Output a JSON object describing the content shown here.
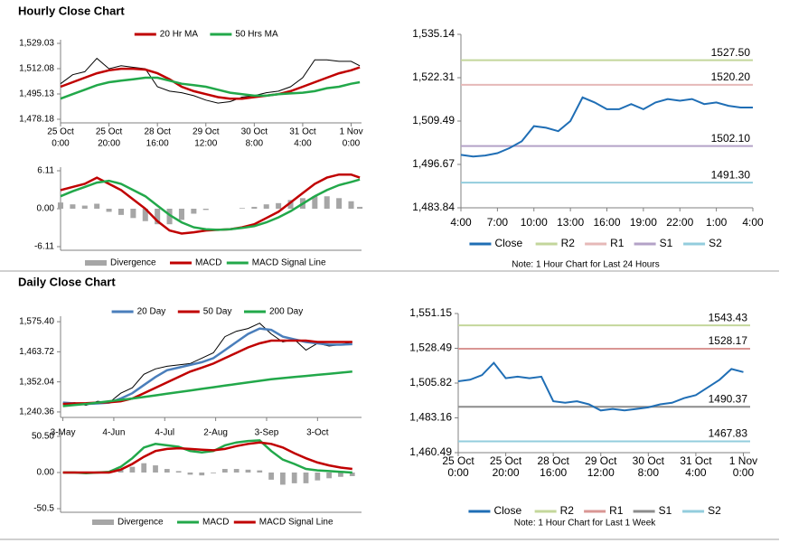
{
  "sections": [
    {
      "title": "Hourly Close Chart"
    },
    {
      "title": "Daily Close Chart"
    }
  ],
  "chart_data": [
    {
      "type": "line",
      "legend": "top",
      "x": [
        0,
        7,
        14,
        21,
        28,
        35,
        42,
        49,
        56,
        63,
        70,
        77,
        84,
        91,
        98,
        105,
        112,
        119,
        126,
        133,
        140,
        147,
        154,
        161,
        168,
        173
      ],
      "xlim": [
        0,
        174
      ],
      "xticks": [
        {
          "value": 0,
          "label": [
            "25 Oct",
            "0:00"
          ]
        },
        {
          "value": 28,
          "label": [
            "25 Oct",
            "20:00"
          ]
        },
        {
          "value": 56,
          "label": [
            "28 Oct",
            "16:00"
          ]
        },
        {
          "value": 84,
          "label": [
            "29 Oct",
            "12:00"
          ]
        },
        {
          "value": 112,
          "label": [
            "30 Oct",
            "8:00"
          ]
        },
        {
          "value": 140,
          "label": [
            "31 Oct",
            "4:00"
          ]
        },
        {
          "value": 168,
          "label": [
            "1 Nov",
            "0:00"
          ]
        }
      ],
      "ylim": [
        1475.76,
        1531.45
      ],
      "yticks": [
        {
          "value": 1478.18,
          "label": "1,478.18"
        },
        {
          "value": 1495.13,
          "label": "1,495.13"
        },
        {
          "value": 1512.08,
          "label": "1,512.08"
        },
        {
          "value": 1529.03,
          "label": "1,529.03"
        }
      ],
      "series": [
        {
          "color": "#000000",
          "values": [
            1502,
            1508,
            1510,
            1519,
            1512,
            1514,
            1513,
            1512,
            1500,
            1497,
            1496,
            1494,
            1491,
            1489,
            1490,
            1493,
            1494,
            1496,
            1497,
            1500,
            1506,
            1518,
            1518,
            1517,
            1517,
            1514
          ]
        },
        {
          "name": "20 Hr MA",
          "color": "#c00000",
          "values": [
            1500,
            1503,
            1506,
            1509,
            1511,
            1512,
            1512,
            1511.5,
            1509,
            1505,
            1500,
            1497,
            1495,
            1493,
            1492,
            1492,
            1493,
            1494,
            1495,
            1497,
            1500,
            1503,
            1506,
            1509,
            1511,
            1513
          ]
        },
        {
          "name": "50 Hrs MA",
          "color": "#22a84a",
          "values": [
            1492,
            1495,
            1498,
            1501,
            1503,
            1504,
            1505,
            1506,
            1506,
            1504,
            1502,
            1501,
            1500,
            1498,
            1496,
            1495,
            1494,
            1494,
            1495,
            1495.5,
            1496,
            1497,
            1499,
            1500,
            1502,
            1503
          ]
        }
      ]
    },
    {
      "type": "macd",
      "legend": "bottom",
      "x": [
        0,
        7,
        14,
        21,
        28,
        35,
        42,
        49,
        56,
        63,
        70,
        77,
        84,
        91,
        98,
        105,
        112,
        119,
        126,
        133,
        140,
        147,
        154,
        161,
        168,
        173
      ],
      "xlim": [
        0,
        174
      ],
      "ylim": [
        -6.69,
        6.69
      ],
      "yticks": [
        -6.11,
        {
          "value": 0,
          "label": "0.00"
        },
        6.11
      ],
      "series": [
        {
          "name": "Divergence",
          "style": "bar",
          "color": "#a6a6a6",
          "values": [
            1,
            0.7,
            0.5,
            0.8,
            -0.5,
            -1,
            -1.5,
            -2,
            -2.5,
            -2.5,
            -1.8,
            -0.8,
            -0.2,
            0,
            0,
            0.1,
            0.3,
            0.7,
            0.9,
            1.4,
            1.7,
            2,
            2,
            1.7,
            1.2,
            0.3
          ]
        },
        {
          "name": "MACD",
          "color": "#c00000",
          "values": [
            3,
            3.5,
            4,
            5,
            4,
            3,
            1.5,
            0,
            -2,
            -3.5,
            -4,
            -3.8,
            -3.5,
            -3.4,
            -3.3,
            -3,
            -2.5,
            -1.5,
            -0.5,
            1,
            2.5,
            4,
            5,
            5.5,
            5.5,
            5
          ]
        },
        {
          "name": "MACD Signal Line",
          "color": "#22a84a",
          "values": [
            2,
            2.8,
            3.5,
            4.2,
            4.5,
            4,
            3,
            2,
            0.5,
            -1,
            -2.2,
            -3,
            -3.3,
            -3.4,
            -3.3,
            -3.1,
            -2.8,
            -2.2,
            -1.4,
            -0.4,
            0.8,
            2,
            3,
            3.8,
            4.3,
            4.7
          ]
        }
      ]
    },
    {
      "type": "levels",
      "legend": "bottom",
      "note": "Note: 1 Hour Chart for Last 24 Hours",
      "x": [
        0,
        1,
        2,
        3,
        4,
        5,
        6,
        7,
        8,
        9,
        10,
        11,
        12,
        13,
        14,
        15,
        16,
        17,
        18,
        19,
        20,
        21,
        22,
        23,
        24
      ],
      "xlim": [
        0,
        24
      ],
      "xticks": [
        {
          "value": 0,
          "label": "4:00"
        },
        {
          "value": 3,
          "label": "7:00"
        },
        {
          "value": 6,
          "label": "10:00"
        },
        {
          "value": 9,
          "label": "13:00"
        },
        {
          "value": 12,
          "label": "16:00"
        },
        {
          "value": 15,
          "label": "19:00"
        },
        {
          "value": 18,
          "label": "22:00"
        },
        {
          "value": 21,
          "label": "1:00"
        },
        {
          "value": 24,
          "label": "4:00"
        }
      ],
      "ylim": [
        1483.84,
        1535.14
      ],
      "yticks": [
        {
          "value": 1483.84,
          "label": "1,483.84"
        },
        {
          "value": 1496.67,
          "label": "1,496.67"
        },
        {
          "value": 1509.49,
          "label": "1,509.49"
        },
        {
          "value": 1522.31,
          "label": "1,522.31"
        },
        {
          "value": 1535.14,
          "label": "1,535.14"
        }
      ],
      "series": [
        {
          "name": "Close",
          "color": "#1f6eb5",
          "values": [
            1499.5,
            1499,
            1499.3,
            1500,
            1501.5,
            1503.5,
            1508,
            1507.5,
            1506.5,
            1509.5,
            1516.5,
            1515,
            1513,
            1513,
            1514.5,
            1513,
            1515,
            1516,
            1515.5,
            1516,
            1514.5,
            1515,
            1514,
            1513.5,
            1513.5
          ]
        }
      ],
      "levels": [
        {
          "name": "R2",
          "value": 1527.5,
          "label": "1527.50",
          "color": "#c3d69b"
        },
        {
          "name": "R1",
          "value": 1520.2,
          "label": "1520.20",
          "color": "#e6b9b8"
        },
        {
          "name": "S1",
          "value": 1502.1,
          "label": "1502.10",
          "color": "#b3a2c7"
        },
        {
          "name": "S2",
          "value": 1491.3,
          "label": "1491.30",
          "color": "#93cddd"
        }
      ]
    },
    {
      "type": "line",
      "legend": "top",
      "x": [
        0,
        5,
        10,
        15,
        20,
        25,
        30,
        35,
        40,
        45,
        50,
        55,
        60,
        65,
        70,
        75,
        80,
        85,
        90,
        95,
        100,
        105,
        110,
        115,
        120,
        125
      ],
      "xlim": [
        -1,
        129
      ],
      "xticks": [
        {
          "value": 0,
          "label": "3-May"
        },
        {
          "value": 22,
          "label": "4-Jun"
        },
        {
          "value": 44,
          "label": "4-Jul"
        },
        {
          "value": 66,
          "label": "2-Aug"
        },
        {
          "value": 88,
          "label": "3-Sep"
        },
        {
          "value": 110,
          "label": "3-Oct"
        }
      ],
      "ylim": [
        1220.05,
        1595.7
      ],
      "yticks": [
        {
          "value": 1240.36,
          "label": "1,240.36"
        },
        {
          "value": 1352.04,
          "label": "1,352.04"
        },
        {
          "value": 1463.72,
          "label": "1,463.72"
        },
        {
          "value": 1575.4,
          "label": "1,575.40"
        }
      ],
      "series": [
        {
          "color": "#000000",
          "values": [
            1270,
            1275,
            1265,
            1280,
            1275,
            1310,
            1330,
            1380,
            1400,
            1410,
            1415,
            1420,
            1440,
            1460,
            1520,
            1540,
            1550,
            1570,
            1530,
            1500,
            1510,
            1470,
            1495,
            1485,
            1490,
            1500
          ]
        },
        {
          "name": "20 Day",
          "color": "#4a7ebb",
          "values": [
            1275,
            1272,
            1270,
            1272,
            1275,
            1290,
            1310,
            1340,
            1370,
            1395,
            1405,
            1415,
            1425,
            1440,
            1470,
            1500,
            1530,
            1550,
            1545,
            1520,
            1510,
            1500,
            1495,
            1490,
            1490,
            1492
          ]
        },
        {
          "name": "50 Day",
          "color": "#c00000",
          "values": [
            1270,
            1272,
            1273,
            1275,
            1276,
            1280,
            1290,
            1310,
            1330,
            1350,
            1370,
            1390,
            1405,
            1420,
            1440,
            1460,
            1480,
            1495,
            1505,
            1505,
            1505,
            1505,
            1500,
            1500,
            1500,
            1500
          ]
        },
        {
          "name": "200 Day",
          "color": "#22a84a",
          "values": [
            1262,
            1266,
            1270,
            1275,
            1280,
            1285,
            1290,
            1296,
            1302,
            1308,
            1314,
            1320,
            1326,
            1332,
            1338,
            1344,
            1350,
            1356,
            1362,
            1366,
            1370,
            1374,
            1378,
            1382,
            1386,
            1390
          ]
        }
      ]
    },
    {
      "type": "macd",
      "legend": "bottom",
      "x": [
        0,
        5,
        10,
        15,
        20,
        25,
        30,
        35,
        40,
        45,
        50,
        55,
        60,
        65,
        70,
        75,
        80,
        85,
        90,
        95,
        100,
        105,
        110,
        115,
        120,
        125
      ],
      "xlim": [
        -1,
        129
      ],
      "ylim": [
        -55.55,
        55.55
      ],
      "yticks": [
        -50.5,
        {
          "value": 0,
          "label": "0.00"
        },
        {
          "value": 50.5,
          "label": "50.50"
        }
      ],
      "series": [
        {
          "name": "Divergence",
          "style": "bar",
          "color": "#a6a6a6",
          "values": [
            0,
            0,
            -1,
            0,
            1,
            4,
            8,
            13,
            10,
            5,
            2,
            -3,
            -4,
            -1,
            5,
            5,
            4,
            3,
            -10,
            -17,
            -15,
            -15,
            -11,
            -8,
            -6,
            -5
          ]
        },
        {
          "name": "MACD",
          "color": "#22a84a",
          "values": [
            0,
            0,
            -1,
            0,
            1,
            8,
            20,
            35,
            40,
            38,
            36,
            30,
            28,
            30,
            38,
            42,
            44,
            45,
            30,
            18,
            12,
            5,
            3,
            2,
            1,
            0
          ]
        },
        {
          "name": "MACD Signal Line",
          "color": "#c00000",
          "values": [
            0,
            0,
            0,
            0,
            0,
            4,
            12,
            22,
            30,
            33,
            34,
            33,
            32,
            31,
            33,
            37,
            40,
            42,
            40,
            35,
            27,
            20,
            14,
            10,
            7,
            5
          ]
        }
      ]
    },
    {
      "type": "levels",
      "legend": "bottom",
      "note": "Note: 1 Hour Chart for Last 1 Week",
      "x": [
        0,
        7,
        14,
        21,
        28,
        35,
        42,
        49,
        56,
        63,
        70,
        77,
        84,
        91,
        98,
        105,
        112,
        119,
        126,
        133,
        140,
        147,
        154,
        161,
        168
      ],
      "xlim": [
        0,
        172
      ],
      "xticks": [
        {
          "value": 0,
          "label": [
            "25 Oct",
            "0:00"
          ]
        },
        {
          "value": 28,
          "label": [
            "25 Oct",
            "20:00"
          ]
        },
        {
          "value": 56,
          "label": [
            "28 Oct",
            "16:00"
          ]
        },
        {
          "value": 84,
          "label": [
            "29 Oct",
            "12:00"
          ]
        },
        {
          "value": 112,
          "label": [
            "30 Oct",
            "8:00"
          ]
        },
        {
          "value": 140,
          "label": [
            "31 Oct",
            "4:00"
          ]
        },
        {
          "value": 168,
          "label": [
            "1 Nov",
            "0:00"
          ]
        }
      ],
      "ylim": [
        1460.49,
        1551.15
      ],
      "yticks": [
        {
          "value": 1460.49,
          "label": "1,460.49"
        },
        {
          "value": 1483.16,
          "label": "1,483.16"
        },
        {
          "value": 1505.82,
          "label": "1,505.82"
        },
        {
          "value": 1528.49,
          "label": "1,528.49"
        },
        {
          "value": 1551.15,
          "label": "1,551.15"
        }
      ],
      "series": [
        {
          "name": "Close",
          "color": "#1f6eb5",
          "values": [
            1507,
            1508,
            1511,
            1519,
            1509,
            1510,
            1509,
            1510,
            1494,
            1493,
            1494,
            1492,
            1488,
            1489,
            1488,
            1489,
            1490,
            1492,
            1493,
            1496,
            1498,
            1503,
            1508,
            1515,
            1513
          ]
        }
      ],
      "levels": [
        {
          "name": "R2",
          "value": 1543.43,
          "label": "1543.43",
          "color": "#c4d79b"
        },
        {
          "name": "R1",
          "value": 1528.17,
          "label": "1528.17",
          "color": "#d99694"
        },
        {
          "name": "S1",
          "value": 1490.37,
          "label": "1490.37",
          "color": "#8c8c8c"
        },
        {
          "name": "S2",
          "value": 1467.83,
          "label": "1467.83",
          "color": "#93cddd"
        }
      ]
    }
  ]
}
